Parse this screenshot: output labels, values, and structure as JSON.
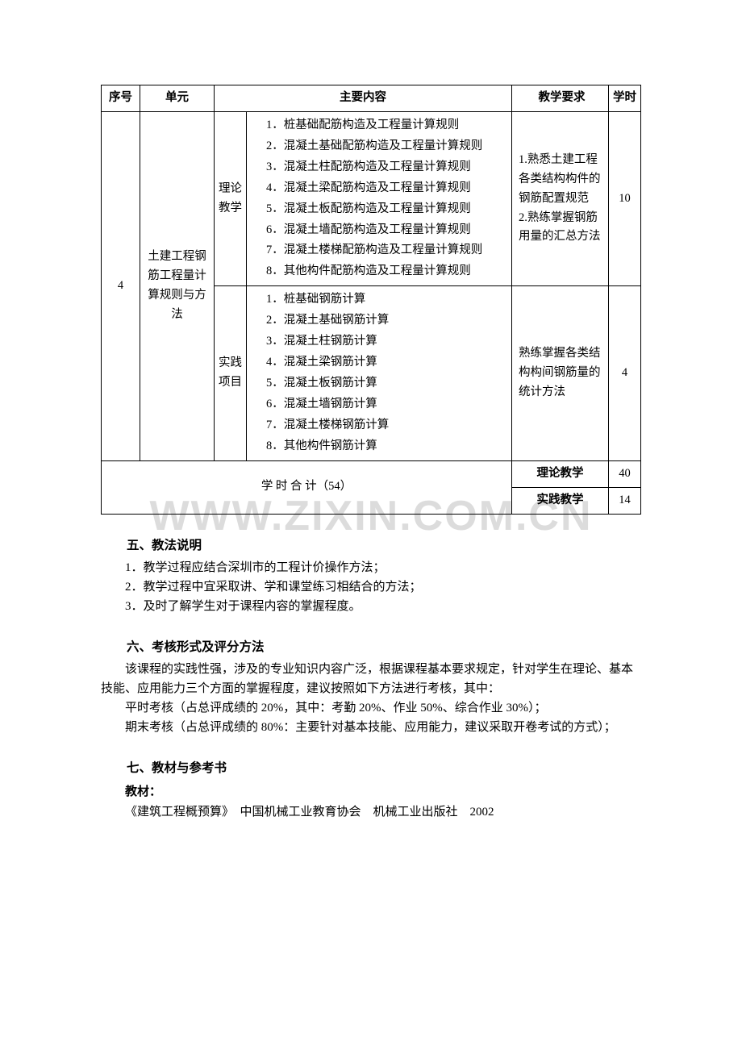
{
  "watermark": "WWW.ZIXIN.COM.CN",
  "table": {
    "headers": {
      "seq": "序号",
      "unit": "单元",
      "main": "主要内容",
      "req": "教学要求",
      "hours": "学时"
    },
    "row": {
      "seq": "4",
      "unit": "土建工程钢筋工程量计算规则与方法",
      "theory": {
        "type": "理论教学",
        "items": [
          "桩基础配筋构造及工程量计算规则",
          "混凝土基础配筋构造及工程量计算规则",
          "混凝土柱配筋构造及工程量计算规则",
          "混凝土梁配筋构造及工程量计算规则",
          "混凝土板配筋构造及工程量计算规则",
          "混凝土墙配筋构造及工程量计算规则",
          "混凝土楼梯配筋构造及工程量计算规则",
          "其他构件配筋构造及工程量计算规则"
        ],
        "req": "1.熟悉土建工程各类结构构件的钢筋配置规范\n2.熟练掌握钢筋用量的汇总方法",
        "hours": "10"
      },
      "practice": {
        "type": "实践项目",
        "items": [
          "桩基础钢筋计算",
          "混凝土基础钢筋计算",
          "混凝土柱钢筋计算",
          "混凝土梁钢筋计算",
          "混凝土板钢筋计算",
          "混凝土墙钢筋计算",
          "混凝土楼梯钢筋计算",
          "其他构件钢筋计算"
        ],
        "req": "熟练掌握各类结构构间钢筋量的统计方法",
        "hours": "4"
      }
    },
    "summary": {
      "label": "学 时 合 计（54）",
      "theory_label": "理论教学",
      "theory_hours": "40",
      "practice_label": "实践教学",
      "practice_hours": "14"
    }
  },
  "section5": {
    "heading": "五、教法说明",
    "p1": "1．教学过程应结合深圳市的工程计价操作方法；",
    "p2": "2．教学过程中宜采取讲、学和课堂练习相结合的方法；",
    "p3": "3．及时了解学生对于课程内容的掌握程度。"
  },
  "section6": {
    "heading": "六、考核形式及评分方法",
    "p1": "该课程的实践性强，涉及的专业知识内容广泛，根据课程基本要求规定，针对学生在理论、基本技能、应用能力三个方面的掌握程度，建议按照如下方法进行考核，其中：",
    "p2": "平时考核（占总评成绩的 20%，其中：考勤 20%、作业 50%、综合作业 30%）；",
    "p3": "期末考核（占总评成绩的 80%：主要针对基本技能、应用能力，建议采取开卷考试的方式）；"
  },
  "section7": {
    "heading": "七、教材与参考书",
    "sub": "教材：",
    "p1": "《建筑工程概预算》　中国机械工业教育协会　机械工业出版社　2002"
  }
}
